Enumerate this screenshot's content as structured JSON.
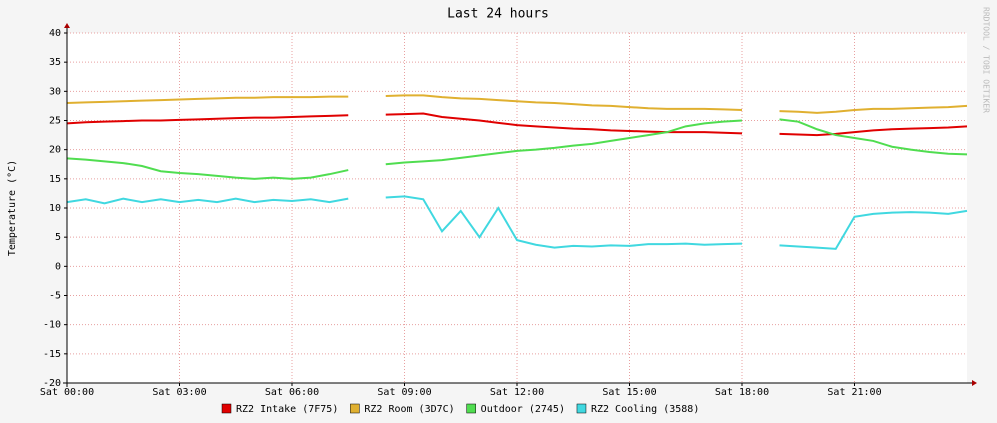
{
  "chart_data": {
    "type": "line",
    "title": "Last 24 hours",
    "y_label": "Temperature (°C)",
    "watermark": "RRDTOOL / TOBI OETIKER",
    "x": [
      0,
      0.5,
      1,
      1.5,
      2,
      2.5,
      3,
      3.5,
      4,
      4.5,
      5,
      5.5,
      6,
      6.5,
      7,
      7.5,
      8,
      8.5,
      9,
      9.5,
      10,
      10.5,
      11,
      11.5,
      12,
      12.5,
      13,
      13.5,
      14,
      14.5,
      15,
      15.5,
      16,
      16.5,
      17,
      17.5,
      18,
      18.5,
      19,
      19.5,
      20,
      20.5,
      21,
      21.5,
      22,
      22.5,
      23,
      23.5,
      24
    ],
    "xlim": [
      0,
      24
    ],
    "xticks": [
      {
        "value": 0,
        "label": "Sat 00:00"
      },
      {
        "value": 3,
        "label": "Sat 03:00"
      },
      {
        "value": 6,
        "label": "Sat 06:00"
      },
      {
        "value": 9,
        "label": "Sat 09:00"
      },
      {
        "value": 12,
        "label": "Sat 12:00"
      },
      {
        "value": 15,
        "label": "Sat 15:00"
      },
      {
        "value": 18,
        "label": "Sat 18:00"
      },
      {
        "value": 21,
        "label": "Sat 21:00"
      }
    ],
    "ylim": [
      -20,
      40
    ],
    "yticks": [
      -20,
      -15,
      -10,
      -5,
      0,
      5,
      10,
      15,
      20,
      25,
      30,
      35,
      40
    ],
    "grid": true,
    "series": [
      {
        "name": "RZ2 Intake (7F75)",
        "color": "#e00000",
        "values": [
          24.5,
          24.7,
          24.8,
          24.9,
          25,
          25,
          25.1,
          25.2,
          25.3,
          25.4,
          25.5,
          25.5,
          25.6,
          25.7,
          25.8,
          25.9,
          null,
          26,
          26.1,
          26.2,
          25.6,
          25.3,
          25,
          24.6,
          24.2,
          24,
          23.8,
          23.6,
          23.5,
          23.3,
          23.2,
          23.1,
          23,
          23,
          23,
          22.9,
          22.8,
          null,
          22.7,
          22.6,
          22.5,
          22.7,
          23,
          23.3,
          23.5,
          23.6,
          23.7,
          23.8,
          24
        ]
      },
      {
        "name": "RZ2 Room (3D7C)",
        "color": "#e0b030",
        "values": [
          28,
          28.1,
          28.2,
          28.3,
          28.4,
          28.5,
          28.6,
          28.7,
          28.8,
          28.9,
          28.9,
          29,
          29,
          29,
          29.1,
          29.1,
          null,
          29.2,
          29.3,
          29.3,
          29,
          28.8,
          28.7,
          28.5,
          28.3,
          28.1,
          28,
          27.8,
          27.6,
          27.5,
          27.3,
          27.1,
          27,
          27,
          27,
          26.9,
          26.8,
          null,
          26.6,
          26.5,
          26.3,
          26.5,
          26.8,
          27,
          27,
          27.1,
          27.2,
          27.3,
          27.5
        ]
      },
      {
        "name": "Outdoor (2745)",
        "color": "#50dd50",
        "values": [
          18.5,
          18.3,
          18,
          17.7,
          17.2,
          16.3,
          16,
          15.8,
          15.5,
          15.2,
          15,
          15.2,
          15,
          15.2,
          15.8,
          16.5,
          null,
          17.5,
          17.8,
          18,
          18.2,
          18.6,
          19,
          19.4,
          19.8,
          20,
          20.3,
          20.7,
          21,
          21.5,
          22,
          22.5,
          23,
          24,
          24.5,
          24.8,
          25,
          null,
          25.2,
          24.8,
          23.5,
          22.5,
          22,
          21.5,
          20.5,
          20,
          19.6,
          19.3,
          19.2
        ]
      },
      {
        "name": "RZ2 Cooling (3588)",
        "color": "#40d8e0",
        "values": [
          11,
          11.5,
          10.8,
          11.6,
          11,
          11.5,
          11,
          11.4,
          11,
          11.6,
          11,
          11.4,
          11.2,
          11.5,
          11,
          11.6,
          null,
          11.8,
          12,
          11.5,
          6,
          9.5,
          5,
          10,
          4.5,
          3.7,
          3.2,
          3.5,
          3.4,
          3.6,
          3.5,
          3.8,
          3.8,
          3.9,
          3.7,
          3.8,
          3.9,
          null,
          3.6,
          3.4,
          3.2,
          3,
          8.5,
          9,
          9.2,
          9.3,
          9.2,
          9,
          9.5
        ]
      }
    ]
  }
}
